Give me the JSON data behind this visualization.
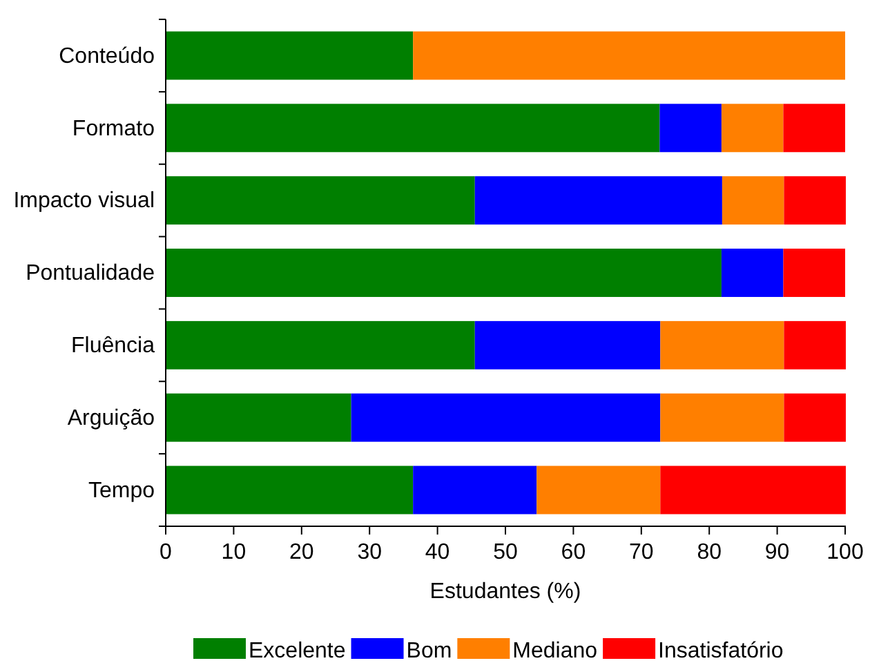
{
  "chart_data": {
    "type": "bar",
    "orientation": "horizontal",
    "stacked": true,
    "categories": [
      "Conteúdo",
      "Formato",
      "Impacto visual",
      "Pontualidade",
      "Fluência",
      "Arguição",
      "Tempo"
    ],
    "xlabel": "Estudantes (%)",
    "xlim": [
      0,
      100
    ],
    "xticks": [
      0,
      10,
      20,
      30,
      40,
      50,
      60,
      70,
      80,
      90,
      100
    ],
    "legend": "bottom",
    "series": [
      {
        "name": "Excelente",
        "color": "#007f00",
        "values": [
          36.4,
          72.7,
          45.5,
          81.8,
          45.5,
          27.3,
          36.4
        ]
      },
      {
        "name": "Bom",
        "color": "#0000ff",
        "values": [
          0,
          9.1,
          36.4,
          9.1,
          27.3,
          45.5,
          18.2
        ]
      },
      {
        "name": "Mediano",
        "color": "#ff7f00",
        "values": [
          63.6,
          9.1,
          9.1,
          0,
          18.2,
          18.2,
          18.2
        ]
      },
      {
        "name": "Insatisfatório",
        "color": "#ff0000",
        "values": [
          0,
          9.1,
          9.1,
          9.1,
          9.1,
          9.1,
          27.3
        ]
      }
    ]
  }
}
